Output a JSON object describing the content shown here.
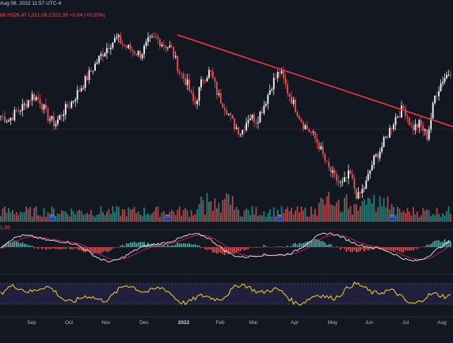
{
  "header": {
    "date": "Aug 08, 2022 11:57 UTC-4",
    "open": "69",
    "high": "H326.47",
    "low": "L321.08",
    "close": "C322.39",
    "change": "+0.64 (+0.20%)"
  },
  "macd_value": "1.89",
  "x_axis": [
    "Sep",
    "Oct",
    "Nov",
    "Dec",
    "2022",
    "Feb",
    "Mar",
    "Apr",
    "May",
    "Jun",
    "Jul",
    "Aug"
  ],
  "events": [
    "D",
    "D",
    "D",
    "D"
  ],
  "colors": {
    "background": "#131722",
    "up": "#ffffff",
    "down": "#ef5350",
    "trendline": "#f23645",
    "volume_up": "#26a69a",
    "volume_down": "#ef5350",
    "macd": "#ffffff",
    "signal": "#e91e63",
    "rsi": "#f5d020",
    "rsi_band": "#2a2450"
  },
  "chart_data": {
    "type": "line",
    "series": [
      {
        "values": [
          300,
          298,
          302,
          305,
          310,
          308,
          300,
          296,
          302,
          306,
          312,
          318,
          324,
          330,
          335,
          338,
          334,
          332,
          330,
          336,
          338,
          335,
          333,
          322,
          316,
          305,
          318,
          322,
          310,
          304,
          296,
          292,
          300,
          298,
          306,
          316,
          322,
          312,
          304,
          296,
          292,
          286,
          276,
          270,
          266,
          272,
          260,
          266,
          278,
          284,
          292,
          300,
          304,
          294,
          296,
          290,
          310,
          318,
          322
        ]
      }
    ]
  }
}
